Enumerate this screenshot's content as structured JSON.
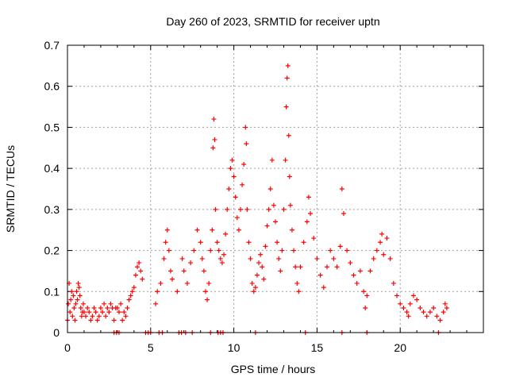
{
  "chart_data": {
    "type": "scatter",
    "title": "Day 260 of 2023, SRMTID for receiver uptn",
    "xlabel": "GPS time / hours",
    "ylabel": "SRMTID / TECUs",
    "xlim": [
      0,
      25
    ],
    "ylim": [
      0,
      0.7
    ],
    "xticks": [
      0,
      5,
      10,
      15,
      20
    ],
    "yticks": [
      0,
      0.1,
      0.2,
      0.3,
      0.4,
      0.5,
      0.6,
      0.7
    ],
    "grid": true,
    "marker": "+",
    "color": "#ff0000",
    "series": [
      {
        "name": "SRMTID",
        "points": [
          [
            0.0,
            0.03
          ],
          [
            0.05,
            0.07
          ],
          [
            0.1,
            0.12
          ],
          [
            0.15,
            0.05
          ],
          [
            0.2,
            0.08
          ],
          [
            0.25,
            0.1
          ],
          [
            0.3,
            0.04
          ],
          [
            0.35,
            0.09
          ],
          [
            0.4,
            0.06
          ],
          [
            0.45,
            0.03
          ],
          [
            0.5,
            0.07
          ],
          [
            0.55,
            0.1
          ],
          [
            0.6,
            0.08
          ],
          [
            0.65,
            0.12
          ],
          [
            0.7,
            0.11
          ],
          [
            0.75,
            0.09
          ],
          [
            0.8,
            0.06
          ],
          [
            0.85,
            0.04
          ],
          [
            0.9,
            0.05
          ],
          [
            0.95,
            0.07
          ],
          [
            1.0,
            0.05
          ],
          [
            1.1,
            0.04
          ],
          [
            1.2,
            0.06
          ],
          [
            1.3,
            0.05
          ],
          [
            1.4,
            0.03
          ],
          [
            1.5,
            0.04
          ],
          [
            1.6,
            0.06
          ],
          [
            1.7,
            0.05
          ],
          [
            1.8,
            0.03
          ],
          [
            1.9,
            0.04
          ],
          [
            2.0,
            0.06
          ],
          [
            2.1,
            0.05
          ],
          [
            2.2,
            0.07
          ],
          [
            2.3,
            0.04
          ],
          [
            2.4,
            0.06
          ],
          [
            2.5,
            0.05
          ],
          [
            2.6,
            0.07
          ],
          [
            2.7,
            0.06
          ],
          [
            2.8,
            0.03
          ],
          [
            2.9,
            0.06
          ],
          [
            3.0,
            0.06
          ],
          [
            3.1,
            0.05
          ],
          [
            3.2,
            0.07
          ],
          [
            3.3,
            0.03
          ],
          [
            3.4,
            0.05
          ],
          [
            3.5,
            0.04
          ],
          [
            3.6,
            0.06
          ],
          [
            3.7,
            0.08
          ],
          [
            3.8,
            0.09
          ],
          [
            3.9,
            0.1
          ],
          [
            4.0,
            0.11
          ],
          [
            4.1,
            0.14
          ],
          [
            4.2,
            0.16
          ],
          [
            4.3,
            0.17
          ],
          [
            4.4,
            0.15
          ],
          [
            4.5,
            0.13
          ],
          [
            5.3,
            0.07
          ],
          [
            5.4,
            0.1
          ],
          [
            5.6,
            0.12
          ],
          [
            5.8,
            0.18
          ],
          [
            5.9,
            0.22
          ],
          [
            6.0,
            0.25
          ],
          [
            6.1,
            0.2
          ],
          [
            6.2,
            0.15
          ],
          [
            6.3,
            0.13
          ],
          [
            6.6,
            0.1
          ],
          [
            6.9,
            0.18
          ],
          [
            7.0,
            0.15
          ],
          [
            7.2,
            0.12
          ],
          [
            7.4,
            0.17
          ],
          [
            7.6,
            0.2
          ],
          [
            7.8,
            0.25
          ],
          [
            8.0,
            0.22
          ],
          [
            8.1,
            0.18
          ],
          [
            8.2,
            0.15
          ],
          [
            8.3,
            0.1
          ],
          [
            8.4,
            0.08
          ],
          [
            8.5,
            0.12
          ],
          [
            8.6,
            0.2
          ],
          [
            8.7,
            0.25
          ],
          [
            8.75,
            0.45
          ],
          [
            8.8,
            0.52
          ],
          [
            8.85,
            0.47
          ],
          [
            8.9,
            0.3
          ],
          [
            9.0,
            0.22
          ],
          [
            9.1,
            0.2
          ],
          [
            9.2,
            0.18
          ],
          [
            9.3,
            0.17
          ],
          [
            9.4,
            0.19
          ],
          [
            9.5,
            0.24
          ],
          [
            9.6,
            0.3
          ],
          [
            9.7,
            0.35
          ],
          [
            9.8,
            0.4
          ],
          [
            9.9,
            0.42
          ],
          [
            10.0,
            0.38
          ],
          [
            10.1,
            0.33
          ],
          [
            10.2,
            0.28
          ],
          [
            10.3,
            0.25
          ],
          [
            10.4,
            0.3
          ],
          [
            10.5,
            0.36
          ],
          [
            10.6,
            0.41
          ],
          [
            10.7,
            0.5
          ],
          [
            10.75,
            0.46
          ],
          [
            10.8,
            0.3
          ],
          [
            10.9,
            0.22
          ],
          [
            11.0,
            0.18
          ],
          [
            11.1,
            0.12
          ],
          [
            11.2,
            0.1
          ],
          [
            11.3,
            0.11
          ],
          [
            11.4,
            0.14
          ],
          [
            11.5,
            0.17
          ],
          [
            11.6,
            0.19
          ],
          [
            11.7,
            0.16
          ],
          [
            11.8,
            0.13
          ],
          [
            11.9,
            0.21
          ],
          [
            12.0,
            0.26
          ],
          [
            12.1,
            0.3
          ],
          [
            12.2,
            0.35
          ],
          [
            12.3,
            0.42
          ],
          [
            12.4,
            0.31
          ],
          [
            12.5,
            0.27
          ],
          [
            12.6,
            0.22
          ],
          [
            12.7,
            0.18
          ],
          [
            12.8,
            0.15
          ],
          [
            12.9,
            0.2
          ],
          [
            13.0,
            0.3
          ],
          [
            13.1,
            0.42
          ],
          [
            13.15,
            0.55
          ],
          [
            13.2,
            0.62
          ],
          [
            13.25,
            0.65
          ],
          [
            13.3,
            0.48
          ],
          [
            13.35,
            0.38
          ],
          [
            13.4,
            0.31
          ],
          [
            13.5,
            0.25
          ],
          [
            13.6,
            0.2
          ],
          [
            13.7,
            0.16
          ],
          [
            13.8,
            0.12
          ],
          [
            13.9,
            0.1
          ],
          [
            14.0,
            0.16
          ],
          [
            14.2,
            0.22
          ],
          [
            14.4,
            0.27
          ],
          [
            14.5,
            0.33
          ],
          [
            14.6,
            0.29
          ],
          [
            14.8,
            0.23
          ],
          [
            15.0,
            0.18
          ],
          [
            15.2,
            0.14
          ],
          [
            15.4,
            0.11
          ],
          [
            15.6,
            0.16
          ],
          [
            15.8,
            0.2
          ],
          [
            16.0,
            0.18
          ],
          [
            16.2,
            0.16
          ],
          [
            16.4,
            0.21
          ],
          [
            16.5,
            0.35
          ],
          [
            16.6,
            0.29
          ],
          [
            16.8,
            0.2
          ],
          [
            17.0,
            0.17
          ],
          [
            17.2,
            0.14
          ],
          [
            17.4,
            0.12
          ],
          [
            17.6,
            0.15
          ],
          [
            17.8,
            0.1
          ],
          [
            17.9,
            0.06
          ],
          [
            18.0,
            0.09
          ],
          [
            18.2,
            0.15
          ],
          [
            18.4,
            0.18
          ],
          [
            18.6,
            0.2
          ],
          [
            18.8,
            0.22
          ],
          [
            18.9,
            0.24
          ],
          [
            19.0,
            0.19
          ],
          [
            19.2,
            0.23
          ],
          [
            19.4,
            0.18
          ],
          [
            19.6,
            0.12
          ],
          [
            19.8,
            0.09
          ],
          [
            20.0,
            0.07
          ],
          [
            20.2,
            0.06
          ],
          [
            20.4,
            0.05
          ],
          [
            20.5,
            0.04
          ],
          [
            20.6,
            0.07
          ],
          [
            20.8,
            0.09
          ],
          [
            21.0,
            0.08
          ],
          [
            21.2,
            0.06
          ],
          [
            21.4,
            0.05
          ],
          [
            21.6,
            0.04
          ],
          [
            21.8,
            0.05
          ],
          [
            22.0,
            0.06
          ],
          [
            22.2,
            0.04
          ],
          [
            22.4,
            0.03
          ],
          [
            22.6,
            0.05
          ],
          [
            22.7,
            0.07
          ],
          [
            22.8,
            0.06
          ],
          [
            2.8,
            0.0
          ],
          [
            2.95,
            0.0
          ],
          [
            3.1,
            0.0
          ],
          [
            4.7,
            0.0
          ],
          [
            4.85,
            0.0
          ],
          [
            5.0,
            0.0
          ],
          [
            5.5,
            0.0
          ],
          [
            5.7,
            0.0
          ],
          [
            6.7,
            0.0
          ],
          [
            6.85,
            0.0
          ],
          [
            7.1,
            0.0
          ],
          [
            7.5,
            0.0
          ],
          [
            8.6,
            0.0
          ],
          [
            9.05,
            0.0
          ],
          [
            9.2,
            0.0
          ],
          [
            9.35,
            0.0
          ],
          [
            11.3,
            0.0
          ],
          [
            14.3,
            0.0
          ],
          [
            16.5,
            0.0
          ],
          [
            18.0,
            0.0
          ],
          [
            22.3,
            0.0
          ]
        ]
      }
    ]
  }
}
